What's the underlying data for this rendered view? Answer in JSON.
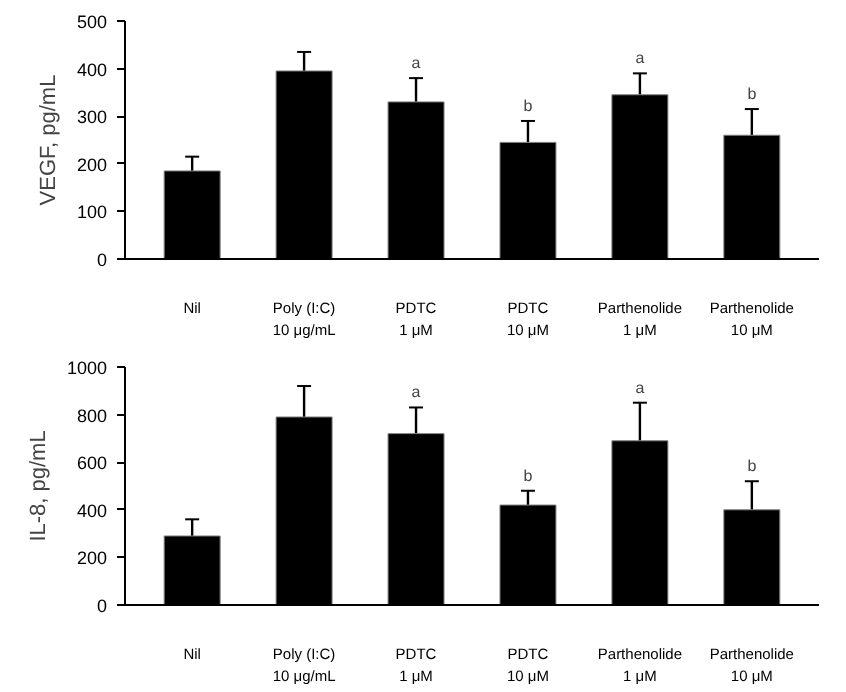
{
  "chart_data": [
    {
      "type": "bar",
      "ylabel": "VEGF, pg/mL",
      "categories": [
        "Nil",
        "Poly (I:C)\n10 μg/mL",
        "PDTC\n1 μM",
        "PDTC\n10 μM",
        "Parthenolide\n1 μM",
        "Parthenolide\n10 μM"
      ],
      "values": [
        185,
        395,
        330,
        245,
        345,
        260
      ],
      "errors": [
        30,
        40,
        50,
        45,
        45,
        55
      ],
      "color": "#000000",
      "ylim": [
        0,
        500
      ],
      "yticks": [
        0,
        100,
        200,
        300,
        400,
        500
      ],
      "annotations": [
        {
          "text": "a",
          "x": "PDTC\n1 μM",
          "y": 380
        },
        {
          "text": "b",
          "x": "PDTC\n10 μM",
          "y": 290
        },
        {
          "text": "a",
          "x": "Parthenolide\n1 μM",
          "y": 390
        },
        {
          "text": "b",
          "x": "Parthenolide\n10 μM",
          "y": 315
        }
      ]
    },
    {
      "type": "bar",
      "ylabel": "IL-8, pg/mL",
      "categories": [
        "Nil",
        "Poly (I:C)\n10 μg/mL",
        "PDTC\n1 μM",
        "PDTC\n10 μM",
        "Parthenolide\n1 μM",
        "Parthenolide\n10 μM"
      ],
      "values": [
        290,
        790,
        720,
        420,
        690,
        400
      ],
      "errors": [
        70,
        130,
        110,
        60,
        160,
        120
      ],
      "color": "#000000",
      "ylim": [
        0,
        1000
      ],
      "yticks": [
        0,
        200,
        400,
        600,
        800,
        1000
      ],
      "annotations": [
        {
          "text": "a",
          "x": "PDTC\n1 μM",
          "y": 830
        },
        {
          "text": "b",
          "x": "PDTC\n10 μM",
          "y": 480
        },
        {
          "text": "a",
          "x": "Parthenolide\n1 μM",
          "y": 850
        },
        {
          "text": "b",
          "x": "Parthenolide\n10 μM",
          "y": 520
        }
      ]
    }
  ]
}
